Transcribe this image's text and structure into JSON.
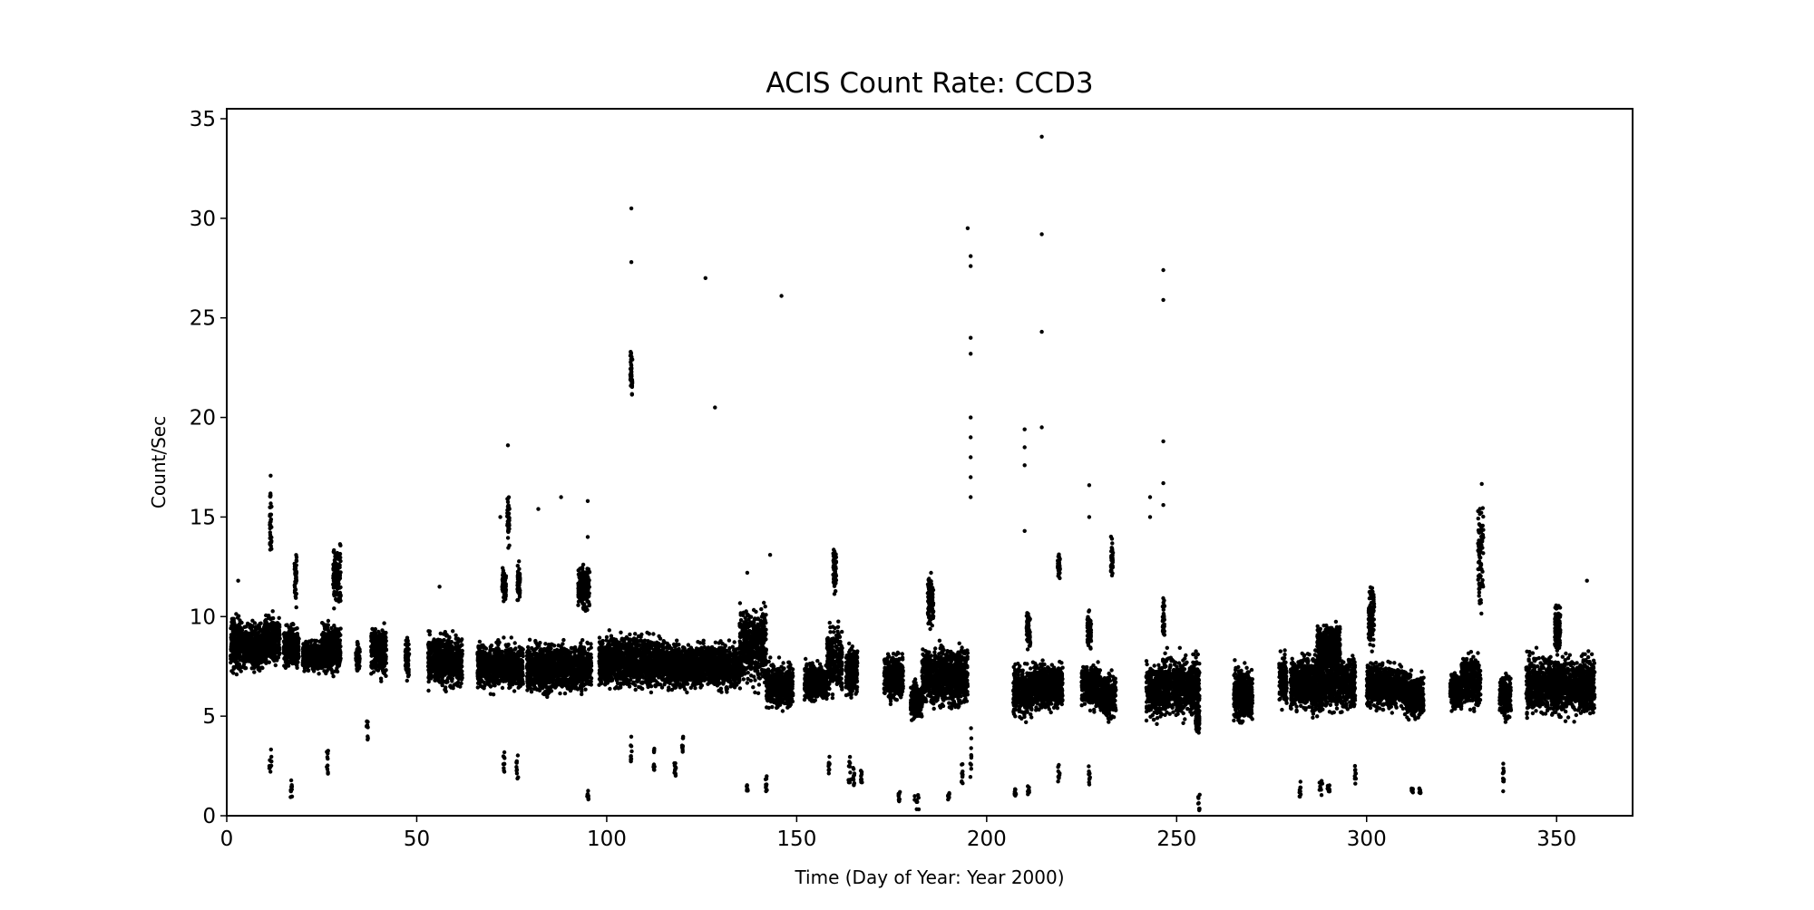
{
  "chart_data": {
    "type": "scatter",
    "title": "ACIS Count Rate: CCD3",
    "xlabel": "Time (Day of Year: Year 2000)",
    "ylabel": "Count/Sec",
    "xlim": [
      0,
      370
    ],
    "ylim": [
      0,
      35.5
    ],
    "xticks": [
      0,
      50,
      100,
      150,
      200,
      250,
      300,
      350
    ],
    "yticks": [
      0,
      5,
      10,
      15,
      20,
      25,
      30,
      35
    ],
    "grid": false,
    "legend": "none",
    "marker_color": "#000000",
    "clusters_note_format": "[day_start, day_end, count_min, count_max]",
    "clusters": [
      [
        1,
        4,
        6.8,
        10.5
      ],
      [
        4,
        10,
        7,
        10
      ],
      [
        10,
        14,
        7,
        10.5
      ],
      [
        11.3,
        11.8,
        12,
        17.5
      ],
      [
        15,
        19,
        7,
        10
      ],
      [
        17.8,
        18.4,
        10,
        14.2
      ],
      [
        20,
        25,
        7,
        9
      ],
      [
        25,
        30,
        6.8,
        10
      ],
      [
        28,
        30,
        10,
        14
      ],
      [
        34,
        35,
        7,
        9
      ],
      [
        38,
        42,
        6.5,
        10
      ],
      [
        47,
        48,
        6.5,
        9.5
      ],
      [
        53,
        62,
        6,
        9.5
      ],
      [
        66,
        72,
        6,
        9
      ],
      [
        72,
        78,
        6,
        9
      ],
      [
        72.5,
        73.5,
        10.5,
        12.8
      ],
      [
        73.8,
        74.4,
        13,
        16.8
      ],
      [
        76.5,
        77.2,
        10.5,
        13
      ],
      [
        79,
        92,
        5.8,
        9
      ],
      [
        92,
        96,
        6,
        9
      ],
      [
        92.5,
        95.5,
        10,
        13
      ],
      [
        98,
        105,
        6,
        9.5
      ],
      [
        105,
        115,
        6,
        9.5
      ],
      [
        106.2,
        106.8,
        20.5,
        23.7
      ],
      [
        115,
        125,
        6,
        9
      ],
      [
        125,
        135,
        6,
        9
      ],
      [
        135,
        142,
        6,
        11
      ],
      [
        142,
        149,
        5,
        8
      ],
      [
        152,
        158,
        5.5,
        8
      ],
      [
        158,
        162,
        5.5,
        10
      ],
      [
        159.6,
        160.4,
        11,
        13.6
      ],
      [
        163,
        166,
        5.5,
        9
      ],
      [
        173,
        178,
        5.5,
        8.5
      ],
      [
        180,
        183,
        4.5,
        7
      ],
      [
        183,
        195,
        5,
        9
      ],
      [
        184.5,
        186,
        9,
        12.5
      ],
      [
        207,
        212,
        4.5,
        8
      ],
      [
        210.5,
        211.5,
        8,
        10.5
      ],
      [
        212,
        220,
        5,
        8
      ],
      [
        218.7,
        219.3,
        11.5,
        13.5
      ],
      [
        225,
        230,
        5,
        8
      ],
      [
        226.5,
        227.5,
        8,
        10.5
      ],
      [
        230,
        234,
        4.5,
        7.5
      ],
      [
        232.7,
        233.3,
        11.5,
        14.2
      ],
      [
        242,
        246,
        4.5,
        8
      ],
      [
        246,
        256,
        4.5,
        8.5
      ],
      [
        246.3,
        246.8,
        8.5,
        11.3
      ],
      [
        255,
        256,
        3.8,
        6
      ],
      [
        265,
        270,
        4.3,
        8
      ],
      [
        277,
        279,
        5,
        8.5
      ],
      [
        280,
        297,
        4.8,
        8.5
      ],
      [
        287,
        293,
        7,
        10
      ],
      [
        300,
        310,
        5,
        8
      ],
      [
        300.5,
        302,
        8,
        12
      ],
      [
        310,
        315,
        4.5,
        7.5
      ],
      [
        322,
        325,
        5,
        7.5
      ],
      [
        325,
        330,
        5,
        8.5
      ],
      [
        329.3,
        330.7,
        9,
        17.2
      ],
      [
        335,
        338,
        4.5,
        7.5
      ],
      [
        342,
        360,
        4.6,
        8.5
      ],
      [
        349.5,
        351,
        8,
        11
      ]
    ],
    "low_clusters": [
      [
        11.2,
        11.8,
        2.2,
        3.6
      ],
      [
        16.8,
        17.2,
        0.8,
        1.9
      ],
      [
        26.3,
        26.7,
        2.1,
        3.3
      ],
      [
        36.8,
        37.2,
        3.8,
        4.8
      ],
      [
        72.8,
        73.2,
        2,
        3.2
      ],
      [
        76.2,
        76.8,
        1.8,
        3.5
      ],
      [
        94.8,
        95.2,
        0.8,
        1.3
      ],
      [
        106.3,
        106.7,
        2.5,
        4
      ],
      [
        112.3,
        112.7,
        2.2,
        3.5
      ],
      [
        117.8,
        118.2,
        2,
        2.8
      ],
      [
        119.8,
        120.2,
        3.2,
        4
      ],
      [
        136.8,
        137.2,
        1.2,
        1.6
      ],
      [
        141.8,
        142.2,
        1.2,
        2.2
      ],
      [
        158.3,
        158.7,
        2,
        3
      ],
      [
        163.2,
        164.2,
        1.6,
        3
      ],
      [
        164.8,
        165.2,
        1.5,
        2.5
      ],
      [
        166.8,
        167.2,
        1.5,
        2.3
      ],
      [
        176.8,
        177.2,
        0.7,
        1.2
      ],
      [
        181,
        182.2,
        0.3,
        1.2
      ],
      [
        189.8,
        190.2,
        0.8,
        1.2
      ],
      [
        193.3,
        193.7,
        1.6,
        2.6
      ],
      [
        195.6,
        196,
        1.8,
        4.5
      ],
      [
        207.3,
        207.7,
        1,
        1.4
      ],
      [
        210.8,
        211.2,
        1,
        1.5
      ],
      [
        218.8,
        219.2,
        1.7,
        2.8
      ],
      [
        226.8,
        227.2,
        1.5,
        2.5
      ],
      [
        255.6,
        256.2,
        0.2,
        1.1
      ],
      [
        282.3,
        282.7,
        0.9,
        1.8
      ],
      [
        287.6,
        288.4,
        0.8,
        1.8
      ],
      [
        289.6,
        290.4,
        1.2,
        1.6
      ],
      [
        296.8,
        297.2,
        1.6,
        2.5
      ],
      [
        311.8,
        312.2,
        1.1,
        1.4
      ],
      [
        313.8,
        314.2,
        1.1,
        1.4
      ],
      [
        335.8,
        336.2,
        1.2,
        2.7
      ]
    ],
    "outliers": [
      [
        106.5,
        30.5
      ],
      [
        106.5,
        27.8
      ],
      [
        126,
        27
      ],
      [
        128.5,
        20.5
      ],
      [
        146,
        26.1
      ],
      [
        195,
        29.5
      ],
      [
        195.8,
        28.1
      ],
      [
        195.8,
        27.6
      ],
      [
        195.8,
        24
      ],
      [
        195.8,
        23.2
      ],
      [
        195.8,
        20
      ],
      [
        195.8,
        19
      ],
      [
        195.8,
        18
      ],
      [
        195.8,
        17
      ],
      [
        195.8,
        16
      ],
      [
        214.5,
        34.1
      ],
      [
        214.5,
        29.2
      ],
      [
        214.5,
        24.3
      ],
      [
        214.5,
        19.5
      ],
      [
        210,
        19.4
      ],
      [
        210,
        18.5
      ],
      [
        210,
        17.6
      ],
      [
        210,
        14.3
      ],
      [
        246.5,
        27.4
      ],
      [
        246.5,
        25.9
      ],
      [
        246.5,
        18.8
      ],
      [
        246.5,
        16.7
      ],
      [
        246.5,
        15.6
      ],
      [
        74,
        18.6
      ],
      [
        72,
        15
      ],
      [
        82,
        15.4
      ],
      [
        88,
        16
      ],
      [
        95,
        15.8
      ],
      [
        95,
        14
      ],
      [
        243,
        16
      ],
      [
        243,
        15
      ],
      [
        227,
        16.6
      ],
      [
        227,
        15
      ],
      [
        358,
        11.8
      ],
      [
        137,
        12.2
      ],
      [
        143,
        13.1
      ],
      [
        3,
        11.8
      ],
      [
        56,
        11.5
      ]
    ]
  }
}
